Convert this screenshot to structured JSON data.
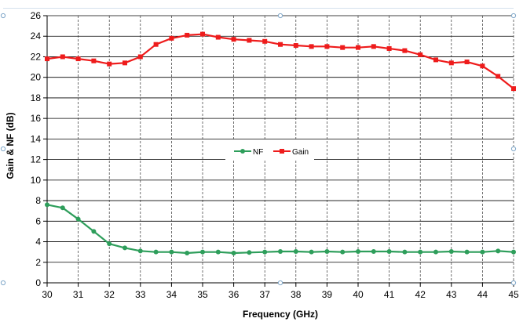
{
  "chart_data": {
    "type": "line",
    "title": "",
    "xlabel": "Frequency (GHz)",
    "ylabel": "Gain & NF (dB)",
    "xlim": [
      30,
      45
    ],
    "ylim": [
      0,
      26
    ],
    "x_ticks": [
      30,
      31,
      32,
      33,
      34,
      35,
      36,
      37,
      38,
      39,
      40,
      41,
      42,
      43,
      44,
      45
    ],
    "y_ticks": [
      0,
      2,
      4,
      6,
      8,
      10,
      12,
      14,
      16,
      18,
      20,
      22,
      24,
      26
    ],
    "grid": true,
    "legend_position": "center",
    "series": [
      {
        "name": "NF",
        "color": "#2e9e5b",
        "marker": "circle",
        "x": [
          30,
          30.5,
          31,
          31.5,
          32,
          32.5,
          33,
          33.5,
          34,
          34.5,
          35,
          35.5,
          36,
          36.5,
          37,
          37.5,
          38,
          38.5,
          39,
          39.5,
          40,
          40.5,
          41,
          41.5,
          42,
          42.5,
          43,
          43.5,
          44,
          44.5,
          45
        ],
        "values": [
          7.6,
          7.3,
          6.2,
          5.0,
          3.8,
          3.4,
          3.1,
          3.0,
          3.0,
          2.9,
          3.0,
          3.0,
          2.9,
          2.95,
          3.0,
          3.05,
          3.05,
          3.0,
          3.05,
          3.0,
          3.05,
          3.05,
          3.05,
          3.0,
          3.0,
          3.0,
          3.05,
          3.0,
          3.0,
          3.1,
          3.0
        ]
      },
      {
        "name": "Gain",
        "color": "#ee1c1c",
        "marker": "square",
        "x": [
          30,
          30.5,
          31,
          31.5,
          32,
          32.5,
          33,
          33.5,
          34,
          34.5,
          35,
          35.5,
          36,
          36.5,
          37,
          37.5,
          38,
          38.5,
          39,
          39.5,
          40,
          40.5,
          41,
          41.5,
          42,
          42.5,
          43,
          43.5,
          44,
          44.5,
          45
        ],
        "values": [
          21.8,
          22.0,
          21.8,
          21.6,
          21.3,
          21.4,
          22.0,
          23.2,
          23.8,
          24.1,
          24.2,
          23.9,
          23.7,
          23.6,
          23.5,
          23.2,
          23.1,
          23.0,
          23.0,
          22.9,
          22.9,
          23.0,
          22.8,
          22.6,
          22.2,
          21.7,
          21.4,
          21.5,
          21.1,
          20.1,
          18.9
        ]
      }
    ]
  }
}
